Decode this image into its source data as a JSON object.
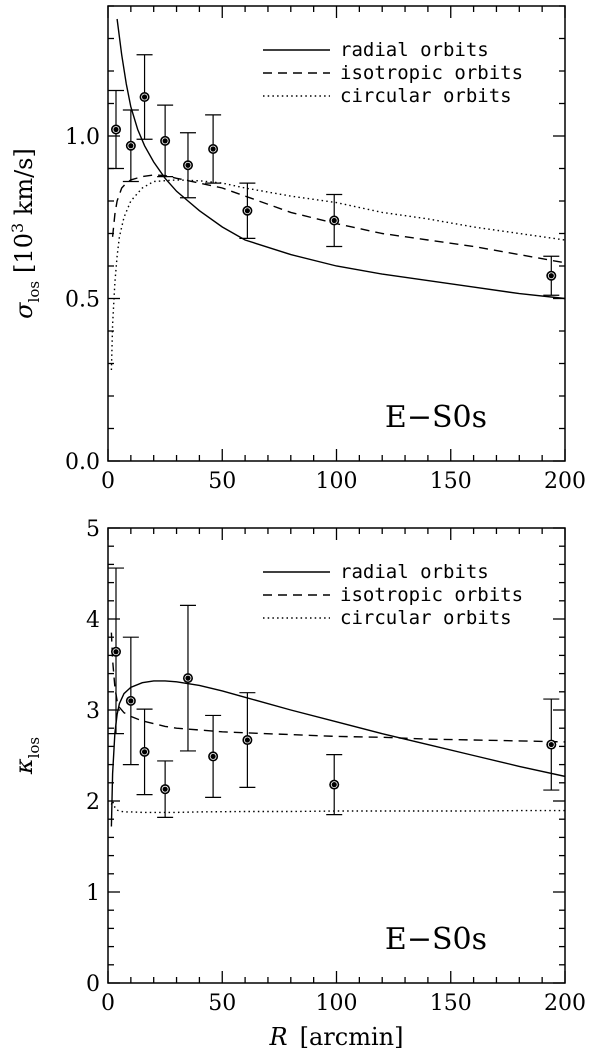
{
  "chart_data": [
    {
      "type": "line",
      "panel": "top",
      "ylabel": "σ_los [10³ km/s]",
      "ylabel_symbol": "σ",
      "ylabel_sub": "los",
      "ylabel_unit_pre": "[10",
      "ylabel_unit_sup": "3",
      "ylabel_unit_post": " km/s]",
      "xlim": [
        0,
        200
      ],
      "ylim": [
        0.0,
        1.4
      ],
      "x_ticks": [
        0,
        50,
        100,
        150,
        200
      ],
      "x_tick_labels": [
        "0",
        "50",
        "100",
        "150",
        "200"
      ],
      "y_ticks": [
        0.0,
        0.5,
        1.0
      ],
      "y_tick_labels": [
        "0.0",
        "0.5",
        "1.0"
      ],
      "x_minor_step": 10,
      "y_minor_step": 0.1,
      "annotation": "E−S0s",
      "legend_position": "top-right",
      "series": [
        {
          "name": "radial orbits",
          "style": "solid",
          "x": [
            4,
            6,
            8,
            10,
            13,
            16,
            20,
            25,
            30,
            35,
            40,
            50,
            60,
            80,
            100,
            120,
            140,
            160,
            180,
            200
          ],
          "y": [
            1.36,
            1.25,
            1.16,
            1.09,
            1.02,
            0.97,
            0.92,
            0.87,
            0.83,
            0.8,
            0.77,
            0.72,
            0.68,
            0.635,
            0.6,
            0.575,
            0.555,
            0.535,
            0.515,
            0.5
          ]
        },
        {
          "name": "isotropic orbits",
          "style": "dashed",
          "x": [
            2,
            3,
            4,
            6,
            8,
            10,
            15,
            20,
            25,
            30,
            40,
            50,
            60,
            80,
            100,
            120,
            140,
            160,
            180,
            200
          ],
          "y": [
            0.69,
            0.76,
            0.8,
            0.84,
            0.855,
            0.865,
            0.875,
            0.88,
            0.878,
            0.87,
            0.855,
            0.84,
            0.815,
            0.765,
            0.73,
            0.7,
            0.68,
            0.66,
            0.635,
            0.61
          ]
        },
        {
          "name": "circular orbits",
          "style": "dotted",
          "x": [
            1.5,
            2,
            3,
            4,
            5,
            7,
            10,
            15,
            20,
            30,
            40,
            50,
            60,
            80,
            100,
            120,
            140,
            160,
            180,
            200
          ],
          "y": [
            0.28,
            0.42,
            0.55,
            0.63,
            0.69,
            0.75,
            0.8,
            0.84,
            0.86,
            0.865,
            0.862,
            0.855,
            0.84,
            0.815,
            0.795,
            0.765,
            0.745,
            0.72,
            0.7,
            0.68
          ]
        }
      ],
      "points": [
        {
          "x": 3.5,
          "y": 1.02,
          "err_lo": 0.12,
          "err_hi": 0.12
        },
        {
          "x": 10,
          "y": 0.97,
          "err_lo": 0.11,
          "err_hi": 0.11
        },
        {
          "x": 16,
          "y": 1.12,
          "err_lo": 0.13,
          "err_hi": 0.13
        },
        {
          "x": 25,
          "y": 0.985,
          "err_lo": 0.11,
          "err_hi": 0.11
        },
        {
          "x": 35,
          "y": 0.91,
          "err_lo": 0.1,
          "err_hi": 0.1
        },
        {
          "x": 46,
          "y": 0.96,
          "err_lo": 0.105,
          "err_hi": 0.105
        },
        {
          "x": 61,
          "y": 0.77,
          "err_lo": 0.085,
          "err_hi": 0.085
        },
        {
          "x": 99,
          "y": 0.74,
          "err_lo": 0.08,
          "err_hi": 0.08
        },
        {
          "x": 194,
          "y": 0.57,
          "err_lo": 0.06,
          "err_hi": 0.06
        }
      ]
    },
    {
      "type": "line",
      "panel": "bottom",
      "xlabel": "R [arcmin]",
      "xlabel_symbol": "R",
      "xlabel_unit": "[arcmin]",
      "ylabel": "κ_los",
      "ylabel_symbol": "κ",
      "ylabel_sub": "los",
      "xlim": [
        0,
        200
      ],
      "ylim": [
        0,
        5
      ],
      "x_ticks": [
        0,
        50,
        100,
        150,
        200
      ],
      "x_tick_labels": [
        "0",
        "50",
        "100",
        "150",
        "200"
      ],
      "y_ticks": [
        0,
        1,
        2,
        3,
        4,
        5
      ],
      "y_tick_labels": [
        "0",
        "1",
        "2",
        "3",
        "4",
        "5"
      ],
      "x_minor_step": 10,
      "y_minor_step": 0.2,
      "annotation": "E−S0s",
      "legend_position": "top-right",
      "series": [
        {
          "name": "radial orbits",
          "style": "solid",
          "x": [
            1.5,
            2,
            3,
            4,
            5,
            7,
            10,
            15,
            20,
            25,
            30,
            40,
            50,
            60,
            80,
            100,
            120,
            140,
            160,
            180,
            200
          ],
          "y": [
            1.72,
            2.3,
            2.75,
            2.95,
            3.07,
            3.18,
            3.25,
            3.3,
            3.32,
            3.32,
            3.31,
            3.27,
            3.21,
            3.14,
            3.0,
            2.87,
            2.74,
            2.62,
            2.5,
            2.38,
            2.27
          ]
        },
        {
          "name": "isotropic orbits",
          "style": "dashed",
          "x": [
            1.5,
            2,
            3,
            4,
            5,
            7,
            10,
            15,
            20,
            25,
            30,
            40,
            50,
            60,
            80,
            100,
            120,
            140,
            160,
            180,
            200
          ],
          "y": [
            3.85,
            3.55,
            3.25,
            3.1,
            3.03,
            2.97,
            2.93,
            2.88,
            2.85,
            2.82,
            2.8,
            2.78,
            2.76,
            2.75,
            2.73,
            2.71,
            2.7,
            2.68,
            2.67,
            2.66,
            2.65
          ]
        },
        {
          "name": "circular orbits",
          "style": "dotted",
          "x": [
            1.5,
            2,
            3,
            4,
            5,
            7,
            10,
            15,
            20,
            30,
            40,
            60,
            80,
            100,
            120,
            140,
            160,
            180,
            200
          ],
          "y": [
            1.96,
            2.0,
            1.93,
            1.9,
            1.89,
            1.88,
            1.88,
            1.875,
            1.875,
            1.875,
            1.88,
            1.885,
            1.885,
            1.89,
            1.89,
            1.89,
            1.89,
            1.895,
            1.895
          ]
        }
      ],
      "points": [
        {
          "x": 3.5,
          "y": 3.64,
          "err_lo": 0.9,
          "err_hi": 0.92
        },
        {
          "x": 10,
          "y": 3.1,
          "err_lo": 0.7,
          "err_hi": 0.7
        },
        {
          "x": 16,
          "y": 2.54,
          "err_lo": 0.47,
          "err_hi": 0.47
        },
        {
          "x": 25,
          "y": 2.13,
          "err_lo": 0.31,
          "err_hi": 0.31
        },
        {
          "x": 35,
          "y": 3.35,
          "err_lo": 0.8,
          "err_hi": 0.8
        },
        {
          "x": 46,
          "y": 2.49,
          "err_lo": 0.45,
          "err_hi": 0.45
        },
        {
          "x": 61,
          "y": 2.67,
          "err_lo": 0.52,
          "err_hi": 0.52
        },
        {
          "x": 99,
          "y": 2.18,
          "err_lo": 0.33,
          "err_hi": 0.33
        },
        {
          "x": 194,
          "y": 2.62,
          "err_lo": 0.5,
          "err_hi": 0.5
        }
      ]
    }
  ]
}
